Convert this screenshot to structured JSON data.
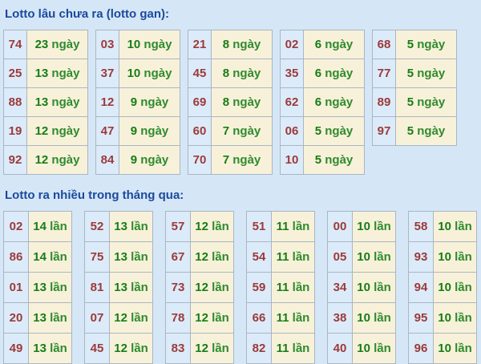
{
  "colors": {
    "background": "#d5e6f7",
    "title": "#1b4a9c",
    "number": "#9c3a3a",
    "count": "#167d16",
    "unit": "#2e8b2e",
    "num_cell_bg": "#dcebfa",
    "val_cell_bg": "#f8f1d9",
    "table_border": "#7590b5",
    "cell_border": "#a9b6c2"
  },
  "section_gan": {
    "title": "Lotto lâu chưa ra (lotto gan):",
    "unit": "ngày",
    "columns": [
      [
        {
          "n": "74",
          "v": "23"
        },
        {
          "n": "25",
          "v": "13"
        },
        {
          "n": "88",
          "v": "13"
        },
        {
          "n": "19",
          "v": "12"
        },
        {
          "n": "92",
          "v": "12"
        }
      ],
      [
        {
          "n": "03",
          "v": "10"
        },
        {
          "n": "37",
          "v": "10"
        },
        {
          "n": "12",
          "v": "9"
        },
        {
          "n": "47",
          "v": "9"
        },
        {
          "n": "84",
          "v": "9"
        }
      ],
      [
        {
          "n": "21",
          "v": "8"
        },
        {
          "n": "45",
          "v": "8"
        },
        {
          "n": "69",
          "v": "8"
        },
        {
          "n": "60",
          "v": "7"
        },
        {
          "n": "70",
          "v": "7"
        }
      ],
      [
        {
          "n": "02",
          "v": "6"
        },
        {
          "n": "35",
          "v": "6"
        },
        {
          "n": "62",
          "v": "6"
        },
        {
          "n": "06",
          "v": "5"
        },
        {
          "n": "10",
          "v": "5"
        }
      ],
      [
        {
          "n": "68",
          "v": "5"
        },
        {
          "n": "77",
          "v": "5"
        },
        {
          "n": "89",
          "v": "5"
        },
        {
          "n": "97",
          "v": "5"
        }
      ]
    ]
  },
  "section_freq": {
    "title": "Lotto ra nhiều trong tháng qua:",
    "unit": "lần",
    "columns": [
      [
        {
          "n": "02",
          "v": "14"
        },
        {
          "n": "86",
          "v": "14"
        },
        {
          "n": "01",
          "v": "13"
        },
        {
          "n": "20",
          "v": "13"
        },
        {
          "n": "49",
          "v": "13"
        }
      ],
      [
        {
          "n": "52",
          "v": "13"
        },
        {
          "n": "75",
          "v": "13"
        },
        {
          "n": "81",
          "v": "13"
        },
        {
          "n": "07",
          "v": "12"
        },
        {
          "n": "45",
          "v": "12"
        }
      ],
      [
        {
          "n": "57",
          "v": "12"
        },
        {
          "n": "67",
          "v": "12"
        },
        {
          "n": "73",
          "v": "12"
        },
        {
          "n": "78",
          "v": "12"
        },
        {
          "n": "83",
          "v": "12"
        }
      ],
      [
        {
          "n": "51",
          "v": "11"
        },
        {
          "n": "54",
          "v": "11"
        },
        {
          "n": "59",
          "v": "11"
        },
        {
          "n": "66",
          "v": "11"
        },
        {
          "n": "82",
          "v": "11"
        }
      ],
      [
        {
          "n": "00",
          "v": "10"
        },
        {
          "n": "05",
          "v": "10"
        },
        {
          "n": "34",
          "v": "10"
        },
        {
          "n": "38",
          "v": "10"
        },
        {
          "n": "40",
          "v": "10"
        }
      ],
      [
        {
          "n": "58",
          "v": "10"
        },
        {
          "n": "93",
          "v": "10"
        },
        {
          "n": "94",
          "v": "10"
        },
        {
          "n": "95",
          "v": "10"
        },
        {
          "n": "96",
          "v": "10"
        }
      ]
    ]
  }
}
